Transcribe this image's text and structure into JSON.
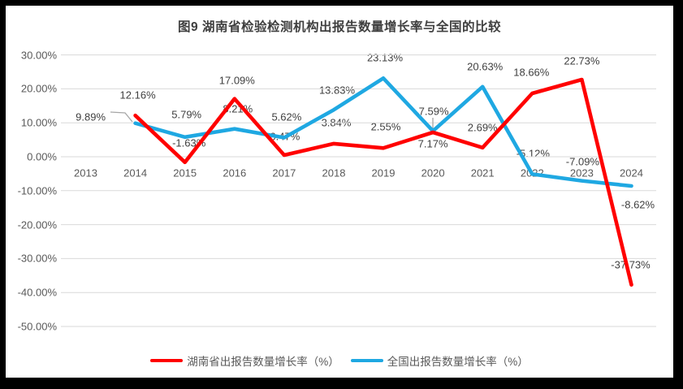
{
  "frame": {
    "background": "#000000",
    "chart_background": "#FFFFFF"
  },
  "title": "图9 湖南省检验检测机构出报告数量增长率与全国的比较",
  "legend": {
    "items": [
      {
        "label": "湖南省出报告数量增长率（%）",
        "color": "#FF0000"
      },
      {
        "label": "全国出报告数量增长率（%）",
        "color": "#1FA8E2"
      }
    ],
    "position": "bottom"
  },
  "chart_data": {
    "type": "line",
    "title": "图9 湖南省检验检测机构出报告数量增长率与全国的比较",
    "categories": [
      "2013",
      "2014",
      "2015",
      "2016",
      "2017",
      "2018",
      "2019",
      "2020",
      "2021",
      "2022",
      "2023",
      "2024"
    ],
    "series": [
      {
        "name": "湖南省出报告数量增长率（%）",
        "color": "#FF0000",
        "start_index": 1,
        "values": [
          12.16,
          -1.63,
          17.09,
          0.47,
          3.84,
          2.55,
          7.17,
          2.69,
          18.66,
          22.73,
          -37.73
        ],
        "labels": [
          "12.16%",
          "-1.63%",
          "17.09%",
          "0.47%",
          "3.84%",
          "2.55%",
          "7.17%",
          "2.69%",
          "18.66%",
          "22.73%",
          "-37.73%"
        ],
        "label_offsets": [
          [
            3,
            -25
          ],
          [
            5,
            -24
          ],
          [
            3,
            -23
          ],
          [
            1,
            -23
          ],
          [
            3,
            -26
          ],
          [
            3,
            -26
          ],
          [
            0,
            14
          ],
          [
            0,
            -25
          ],
          [
            -1,
            -26
          ],
          [
            0,
            -23
          ],
          [
            -1,
            -25
          ]
        ]
      },
      {
        "name": "全国出报告数量增长率（%）",
        "color": "#1FA8E2",
        "start_index": 1,
        "values": [
          9.89,
          5.79,
          8.21,
          5.62,
          13.83,
          23.13,
          7.59,
          20.63,
          -5.12,
          -7.09,
          -8.62
        ],
        "labels": [
          "9.89%",
          "5.79%",
          "8.21%",
          "5.62%",
          "13.83%",
          "23.13%",
          "7.59%",
          "20.63%",
          "-5.12%",
          "-7.09%",
          "-8.62%"
        ],
        "label_offsets": [
          [
            -55,
            -8
          ],
          [
            2,
            -28
          ],
          [
            4,
            -25
          ],
          [
            3,
            -26
          ],
          [
            4,
            -24
          ],
          [
            2,
            -25
          ],
          [
            1,
            -24
          ],
          [
            3,
            -25
          ],
          [
            1,
            -25
          ],
          [
            1,
            -24
          ],
          [
            8,
            23
          ]
        ]
      }
    ],
    "ylim": [
      -50,
      30
    ],
    "ytick_step": 10,
    "yticks": [
      30,
      20,
      10,
      0,
      -10,
      -20,
      -30,
      -40,
      -50
    ],
    "ytick_labels": [
      "30.00%",
      "20.00%",
      "10.00%",
      "0.00%",
      "-10.00%",
      "-20.00%",
      "-30.00%",
      "-40.00%",
      "-50.00%"
    ],
    "xlabel": "",
    "ylabel": "",
    "grid": true,
    "gridline_color": "#D9D9D9",
    "legend_position": "bottom",
    "label_format": "percent-2dp",
    "layout": {
      "leader_color": "#A6A6A6",
      "leaders": [
        {
          "points": [
            [
              129,
              131
            ],
            [
              147,
              132
            ],
            [
              156,
              143
            ]
          ]
        },
        {
          "points": [
            [
              526,
              138
            ],
            [
              526,
              152
            ]
          ]
        }
      ]
    }
  }
}
